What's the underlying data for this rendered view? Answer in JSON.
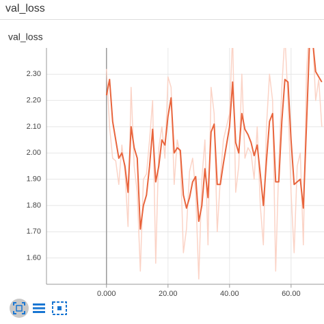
{
  "header": {
    "title": "val_loss"
  },
  "chart_data": {
    "type": "line",
    "title": "val_loss",
    "x": [
      0,
      1,
      2,
      3,
      4,
      5,
      6,
      7,
      8,
      9,
      10,
      11,
      12,
      13,
      14,
      15,
      16,
      17,
      18,
      19,
      20,
      21,
      22,
      23,
      24,
      25,
      26,
      27,
      28,
      29,
      30,
      31,
      32,
      33,
      34,
      35,
      36,
      37,
      38,
      39,
      40,
      41,
      42,
      43,
      44,
      45,
      46,
      47,
      48,
      49,
      50,
      51,
      52,
      53,
      54,
      55,
      56,
      57,
      58,
      59,
      60,
      61,
      62,
      63,
      64,
      65,
      66,
      67,
      68,
      69,
      70
    ],
    "series": [
      {
        "color": "#fbd3c6",
        "values": [
          2.32,
          2.1,
          1.98,
          1.97,
          1.88,
          2.03,
          1.93,
          1.72,
          2.25,
          1.95,
          1.85,
          1.55,
          1.9,
          1.92,
          2.05,
          2.2,
          1.58,
          2.02,
          2.1,
          1.98,
          2.29,
          2.25,
          1.88,
          2.05,
          1.99,
          1.62,
          1.71,
          1.93,
          1.98,
          1.85,
          1.52,
          1.9,
          2.05,
          1.65,
          2.25,
          2.15,
          1.7,
          1.9,
          2.05,
          2.1,
          2.15,
          2.45,
          1.85,
          1.95,
          2.3,
          1.98,
          2.02,
          2.0,
          1.9,
          2.1,
          1.8,
          1.65,
          2.1,
          2.3,
          2.2,
          1.55,
          1.95,
          2.25,
          2.45,
          2.2,
          1.85,
          1.62,
          1.95,
          2.0,
          1.65,
          2.3,
          2.5,
          2.45,
          2.2,
          2.28,
          2.1
        ]
      },
      {
        "color": "#e8643c",
        "values": [
          2.22,
          2.28,
          2.12,
          2.05,
          1.98,
          2.0,
          1.95,
          1.85,
          2.1,
          2.02,
          1.98,
          1.71,
          1.8,
          1.84,
          1.95,
          2.09,
          1.89,
          1.95,
          2.05,
          2.03,
          2.14,
          2.21,
          2.0,
          2.02,
          2.01,
          1.84,
          1.79,
          1.83,
          1.89,
          1.91,
          1.74,
          1.8,
          1.94,
          1.83,
          2.08,
          2.11,
          1.88,
          1.88,
          1.96,
          2.03,
          2.1,
          2.27,
          2.04,
          2.0,
          2.15,
          2.09,
          2.07,
          2.04,
          1.99,
          2.03,
          1.92,
          1.8,
          1.97,
          2.12,
          2.15,
          1.89,
          1.89,
          2.12,
          2.28,
          2.27,
          2.05,
          1.88,
          1.89,
          1.9,
          1.79,
          2.1,
          2.42,
          2.43,
          2.31,
          2.29,
          2.27
        ]
      }
    ],
    "xlim": [
      -19.5,
      70.7
    ],
    "ylim": [
      1.5,
      2.4
    ],
    "xticks": [
      {
        "value": 0,
        "label": "0.000"
      },
      {
        "value": 20,
        "label": "20.00"
      },
      {
        "value": 40,
        "label": "40.00"
      },
      {
        "value": 60,
        "label": "60.00"
      }
    ],
    "yticks": [
      {
        "value": 1.6,
        "label": "1.60"
      },
      {
        "value": 1.7,
        "label": "1.70"
      },
      {
        "value": 1.8,
        "label": "1.80"
      },
      {
        "value": 1.9,
        "label": "1.90"
      },
      {
        "value": 2.0,
        "label": "2.00"
      },
      {
        "value": 2.1,
        "label": "2.10"
      },
      {
        "value": 2.2,
        "label": "2.20"
      },
      {
        "value": 2.3,
        "label": "2.30"
      }
    ],
    "grid": true
  }
}
